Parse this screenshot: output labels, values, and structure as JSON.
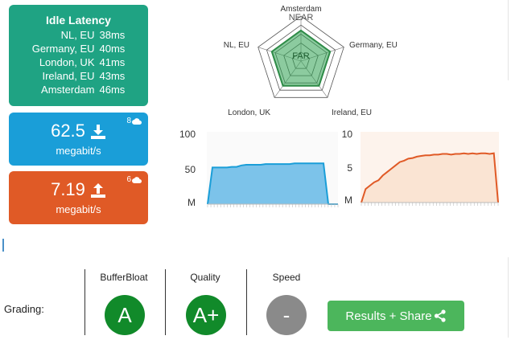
{
  "latency": {
    "title": "Idle Latency",
    "rows": [
      {
        "city": "NL, EU",
        "ms": "38ms"
      },
      {
        "city": "Germany, EU",
        "ms": "40ms"
      },
      {
        "city": "London, UK",
        "ms": "41ms"
      },
      {
        "city": "Ireland, EU",
        "ms": "43ms"
      },
      {
        "city": "Amsterdam",
        "ms": "46ms"
      }
    ]
  },
  "download": {
    "value": "62.5",
    "unit": "megabit/s",
    "count": "8",
    "icon": "download-icon",
    "color": "#1a9ed8"
  },
  "upload": {
    "value": "7.19",
    "unit": "megabit/s",
    "count": "6",
    "icon": "upload-icon",
    "color": "#e05a26"
  },
  "radar": {
    "labels": {
      "top": "Amsterdam",
      "right": "Germany, EU",
      "bottom_right": "Ireland, EU",
      "bottom_left": "London, UK",
      "left": "NL, EU"
    },
    "near": "NEAR",
    "far": "FAR"
  },
  "chart_data": [
    {
      "type": "area",
      "series": [
        {
          "values": [
            0,
            53,
            53,
            53,
            53,
            54,
            54,
            56,
            57,
            57,
            57,
            57,
            58,
            58,
            58,
            58,
            58,
            58,
            59,
            59,
            59,
            59,
            59,
            59,
            59,
            0,
            0,
            0
          ]
        }
      ],
      "ytick_labels": [
        "100",
        "50",
        "M"
      ],
      "ylim": [
        0,
        100
      ],
      "color": "#1a9ed8"
    },
    {
      "type": "area",
      "series": [
        {
          "values": [
            0,
            2,
            2.5,
            3,
            3.3,
            4,
            4.5,
            5,
            5.5,
            6,
            6.2,
            6.5,
            6.6,
            6.8,
            6.9,
            7,
            7,
            7.1,
            7.1,
            7.2,
            7.2,
            7.1,
            7.2,
            7.2,
            7.3,
            7.2,
            7.3,
            7.2,
            7.3,
            7.3,
            7.2,
            7.3,
            0
          ]
        }
      ],
      "ytick_labels": [
        "10",
        "5",
        "M"
      ],
      "ylim": [
        0,
        10
      ],
      "color": "#e05a26"
    }
  ],
  "grading": {
    "label": "Grading:",
    "bufferbloat": {
      "label": "BufferBloat",
      "grade": "A"
    },
    "quality": {
      "label": "Quality",
      "grade": "A+"
    },
    "speed": {
      "label": "Speed",
      "grade": "-"
    }
  },
  "share": {
    "label": "Results + Share",
    "icon": "share-icon"
  }
}
